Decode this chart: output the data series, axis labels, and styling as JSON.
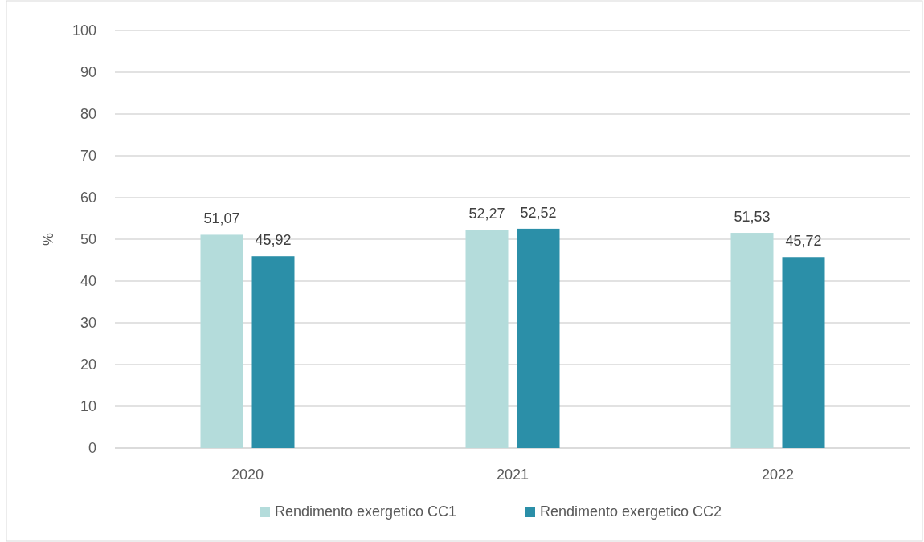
{
  "chart_data": {
    "type": "bar",
    "ylabel": "%",
    "categories": [
      "2020",
      "2021",
      "2022"
    ],
    "series": [
      {
        "name": "Rendimento exergetico CC1",
        "color": "#b4dcdb",
        "values": [
          51.07,
          52.27,
          51.53
        ],
        "value_labels": [
          "51,07",
          "52,27",
          "51,53"
        ]
      },
      {
        "name": "Rendimento exergetico CC2",
        "color": "#2b8fa8",
        "values": [
          45.92,
          52.52,
          45.72
        ],
        "value_labels": [
          "45,92",
          "52,52",
          "45,72"
        ]
      }
    ],
    "ylim": [
      0,
      100
    ],
    "yticks": [
      0,
      10,
      20,
      30,
      40,
      50,
      60,
      70,
      80,
      90,
      100
    ],
    "grid": "y",
    "legend": "bottom"
  }
}
